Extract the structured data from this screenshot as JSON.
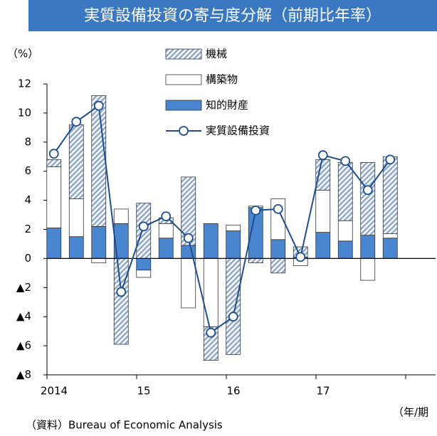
{
  "chart_data": {
    "type": "bar",
    "stacked": true,
    "title": "実質設備投資の寄与度分解（前期比年率）",
    "y_label": "（%）",
    "x_label": "（年/期",
    "source": "（資料）Bureau of Economic Analysis",
    "title_color": "#3a78c2",
    "categories": [
      "2014",
      null,
      null,
      null,
      "15",
      null,
      null,
      null,
      "16",
      null,
      null,
      null,
      "17",
      null,
      null,
      null
    ],
    "series": [
      {
        "name": "知的財産",
        "color": "#4a86d0",
        "values": [
          2.1,
          1.5,
          2.2,
          2.4,
          -0.8,
          1.4,
          0.9,
          2.4,
          1.9,
          3.5,
          1.3,
          0.1,
          1.8,
          1.2,
          1.6,
          1.4
        ]
      },
      {
        "name": "構築物",
        "color": "#ffffff",
        "values": [
          4.2,
          2.6,
          -0.3,
          1.0,
          -0.5,
          1.0,
          -3.4,
          -4.7,
          0.4,
          0.1,
          2.8,
          -0.5,
          2.9,
          1.4,
          -1.5,
          0.3
        ]
      },
      {
        "name": "機械",
        "color": "#8fa9cc",
        "pattern": "hatch",
        "values": [
          0.5,
          5.1,
          9.0,
          -5.9,
          3.8,
          0.4,
          4.7,
          -2.3,
          -6.6,
          -0.3,
          -1.0,
          0.7,
          2.1,
          4.0,
          5.0,
          5.3
        ]
      },
      {
        "name": "実質設備投資",
        "type": "line",
        "color": "#1f4e8c",
        "values": [
          7.2,
          9.4,
          10.5,
          -2.3,
          2.2,
          2.9,
          1.4,
          -5.1,
          -4.0,
          3.3,
          3.4,
          0.1,
          7.1,
          6.7,
          4.7,
          6.8
        ]
      }
    ],
    "legend_order": [
      2,
      1,
      0,
      3
    ],
    "ylim": [
      -8,
      12
    ],
    "yticks": [
      {
        "value": -8,
        "label": "▲8"
      },
      {
        "value": -6,
        "label": "▲6"
      },
      {
        "value": -4,
        "label": "▲4"
      },
      {
        "value": -2,
        "label": "▲2"
      },
      0,
      2,
      4,
      6,
      8,
      10,
      12
    ]
  }
}
